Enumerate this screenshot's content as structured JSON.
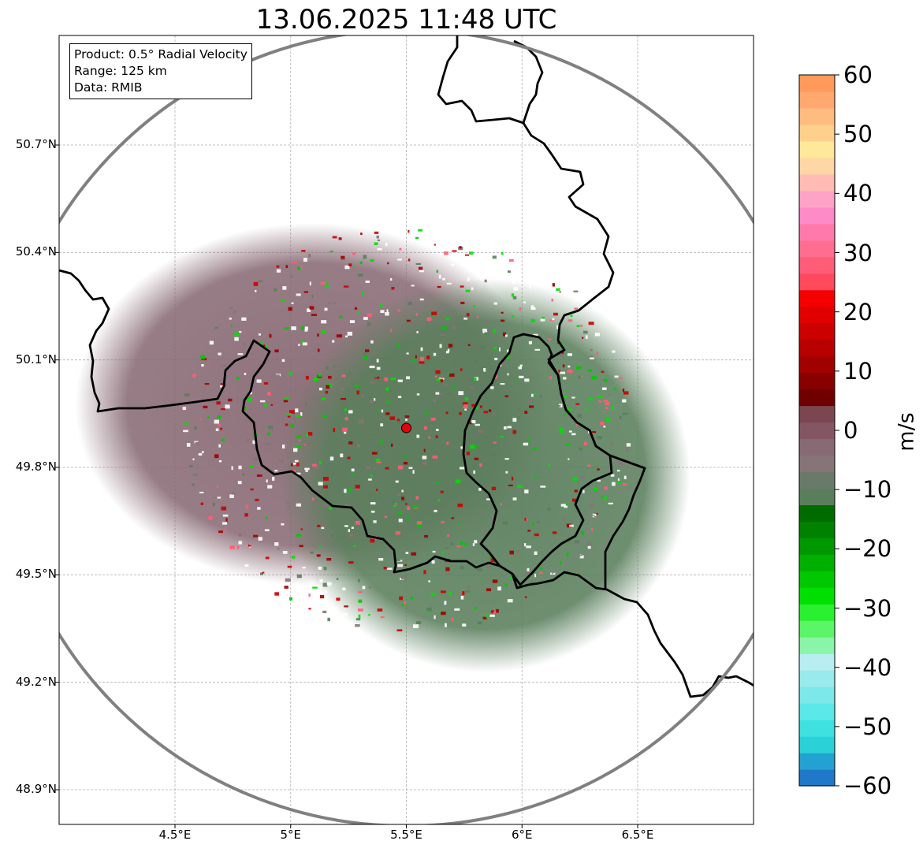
{
  "title": "13.06.2025 11:48 UTC",
  "legend": {
    "product": "Product: 0.5° Radial Velocity",
    "range": "Range: 125 km",
    "data": "Data: RMIB"
  },
  "axes": {
    "x_ticks": [
      {
        "label": "4.5°E",
        "value": 4.5
      },
      {
        "label": "5°E",
        "value": 5.0
      },
      {
        "label": "5.5°E",
        "value": 5.5
      },
      {
        "label": "6°E",
        "value": 6.0
      },
      {
        "label": "6.5°E",
        "value": 6.5
      }
    ],
    "y_ticks": [
      {
        "label": "50.7°N",
        "value": 50.7
      },
      {
        "label": "50.4°N",
        "value": 50.4
      },
      {
        "label": "50.1°N",
        "value": 50.1
      },
      {
        "label": "49.8°N",
        "value": 49.8
      },
      {
        "label": "49.5°N",
        "value": 49.5
      },
      {
        "label": "49.2°N",
        "value": 49.2
      },
      {
        "label": "48.9°N",
        "value": 48.9
      }
    ],
    "lon_range": [
      4.0,
      7.0
    ],
    "lat_range": [
      48.8,
      51.0
    ]
  },
  "radar": {
    "lon": 5.5,
    "lat": 49.91,
    "range_km": 125,
    "marker_color": "#e8000b"
  },
  "colorbar": {
    "unit": "m/s",
    "vmin": -60,
    "vmax": 60,
    "labels": [
      "60",
      "50",
      "40",
      "30",
      "20",
      "10",
      "0",
      "−10",
      "−20",
      "−30",
      "−40",
      "−50",
      "−60"
    ],
    "label_values": [
      60,
      50,
      40,
      30,
      20,
      10,
      0,
      -10,
      -20,
      -30,
      -40,
      -50,
      -60
    ],
    "colors": [
      "#1f78c8",
      "#22a2d0",
      "#2ad2d8",
      "#3ee0e0",
      "#5ae8e8",
      "#7ce8ea",
      "#98eaec",
      "#b8eef0",
      "#8af5a8",
      "#5cf56a",
      "#2af030",
      "#00e000",
      "#00c800",
      "#00b000",
      "#009800",
      "#008200",
      "#006c00",
      "#5a7e5c",
      "#6a7a6a",
      "#867476",
      "#886a74",
      "#845562",
      "#7a4650",
      "#6e0000",
      "#880000",
      "#a00000",
      "#b80000",
      "#cc0000",
      "#e00000",
      "#f50000",
      "#ff4a5e",
      "#ff5c78",
      "#ff6e90",
      "#ff7aa8",
      "#ff8ac8",
      "#ffa2c8",
      "#ffbcb4",
      "#ffd6a4",
      "#ffe89a",
      "#ffd08c",
      "#ffbc80",
      "#ffa870",
      "#ff9a5a"
    ]
  },
  "legend_box_colors": {
    "approaching": "#5a7e5c",
    "receding": "#886a74"
  }
}
